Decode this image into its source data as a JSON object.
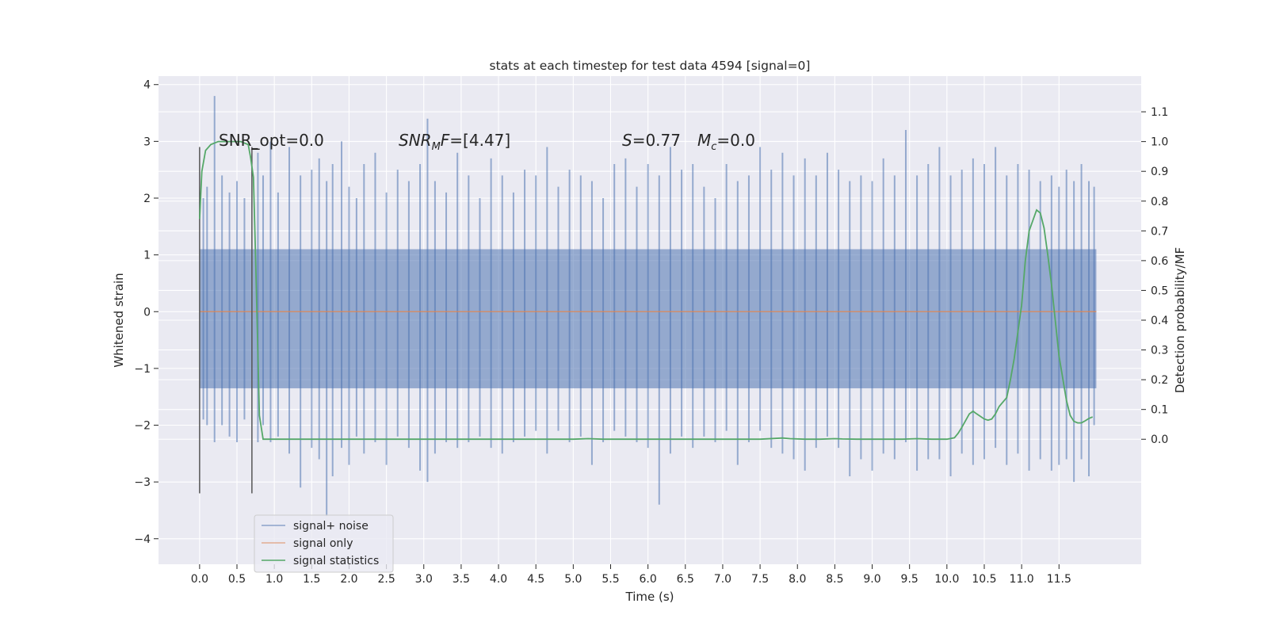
{
  "chart_data": {
    "type": "line",
    "title": "stats at each timestep for test data 4594 [signal=0]",
    "xlabel": "Time (s)",
    "ylabel": "Whitened strain",
    "ylabel_right": "Detection probability/MF",
    "xlim": [
      -0.55,
      12.6
    ],
    "ylim": [
      -4.45,
      4.15
    ],
    "ylim_right": [
      -0.42,
      1.22
    ],
    "grid": true,
    "x_ticks": [
      "0.0",
      "0.5",
      "1.0",
      "1.5",
      "2.0",
      "2.5",
      "3.0",
      "3.5",
      "4.0",
      "4.5",
      "5.0",
      "5.5",
      "6.0",
      "6.5",
      "7.0",
      "7.5",
      "8.0",
      "8.5",
      "9.0",
      "9.5",
      "10.0",
      "10.5",
      "11.0",
      "11.5"
    ],
    "y_ticks": [
      "4",
      "3",
      "2",
      "1",
      "0",
      "−1",
      "−2",
      "−3",
      "−4"
    ],
    "y_ticks_right": [
      "1.1",
      "1.0",
      "0.9",
      "0.8",
      "0.7",
      "0.6",
      "0.5",
      "0.4",
      "0.3",
      "0.2",
      "0.1",
      "0.0"
    ],
    "legend_position": "lower-left",
    "series": [
      {
        "name": "signal+ noise",
        "color": "#4c72b0",
        "axis": "left",
        "band": {
          "x_start": 0.0,
          "x_end": 12.0,
          "core_low": -1.35,
          "core_high": 1.1
        },
        "spikes": [
          [
            0.05,
            2.0,
            -1.9
          ],
          [
            0.1,
            2.2,
            -2.0
          ],
          [
            0.2,
            3.8,
            -2.3
          ],
          [
            0.3,
            2.4,
            -2.0
          ],
          [
            0.4,
            2.1,
            -2.2
          ],
          [
            0.5,
            2.3,
            -2.3
          ],
          [
            0.6,
            2.0,
            -1.9
          ],
          [
            0.78,
            2.8,
            -2.3
          ],
          [
            0.85,
            2.4,
            -2.0
          ],
          [
            0.95,
            3.0,
            -2.3
          ],
          [
            1.05,
            2.1,
            -2.2
          ],
          [
            1.2,
            2.9,
            -2.5
          ],
          [
            1.35,
            2.4,
            -3.1
          ],
          [
            1.5,
            2.5,
            -2.4
          ],
          [
            1.6,
            2.7,
            -2.6
          ],
          [
            1.7,
            2.3,
            -3.6
          ],
          [
            1.78,
            2.6,
            -2.9
          ],
          [
            1.9,
            3.0,
            -2.4
          ],
          [
            2.0,
            2.2,
            -2.7
          ],
          [
            2.1,
            2.0,
            -2.2
          ],
          [
            2.2,
            2.6,
            -2.5
          ],
          [
            2.35,
            2.8,
            -2.3
          ],
          [
            2.5,
            2.1,
            -2.7
          ],
          [
            2.65,
            2.5,
            -2.2
          ],
          [
            2.8,
            2.3,
            -2.4
          ],
          [
            2.95,
            2.6,
            -2.8
          ],
          [
            3.05,
            3.4,
            -3.0
          ],
          [
            3.15,
            2.3,
            -2.5
          ],
          [
            3.3,
            2.1,
            -2.3
          ],
          [
            3.45,
            2.8,
            -2.4
          ],
          [
            3.6,
            2.4,
            -2.3
          ],
          [
            3.75,
            2.0,
            -2.2
          ],
          [
            3.9,
            2.7,
            -2.4
          ],
          [
            4.05,
            2.4,
            -2.5
          ],
          [
            4.2,
            2.1,
            -2.3
          ],
          [
            4.35,
            2.5,
            -2.2
          ],
          [
            4.5,
            2.4,
            -2.1
          ],
          [
            4.65,
            2.9,
            -2.5
          ],
          [
            4.8,
            2.2,
            -2.1
          ],
          [
            4.95,
            2.5,
            -2.3
          ],
          [
            5.1,
            2.4,
            -2.2
          ],
          [
            5.25,
            2.3,
            -2.7
          ],
          [
            5.4,
            2.0,
            -2.3
          ],
          [
            5.55,
            2.6,
            -2.1
          ],
          [
            5.7,
            2.7,
            -2.2
          ],
          [
            5.85,
            2.2,
            -2.3
          ],
          [
            6.0,
            2.6,
            -2.4
          ],
          [
            6.15,
            2.4,
            -3.4
          ],
          [
            6.3,
            2.9,
            -2.5
          ],
          [
            6.45,
            2.5,
            -2.2
          ],
          [
            6.6,
            2.6,
            -2.4
          ],
          [
            6.75,
            2.2,
            -2.2
          ],
          [
            6.9,
            2.0,
            -2.3
          ],
          [
            7.05,
            2.6,
            -2.1
          ],
          [
            7.2,
            2.3,
            -2.7
          ],
          [
            7.35,
            2.4,
            -2.3
          ],
          [
            7.5,
            2.9,
            -2.1
          ],
          [
            7.65,
            2.5,
            -2.4
          ],
          [
            7.8,
            2.8,
            -2.5
          ],
          [
            7.95,
            2.4,
            -2.6
          ],
          [
            8.1,
            2.7,
            -2.8
          ],
          [
            8.25,
            2.4,
            -2.4
          ],
          [
            8.4,
            2.8,
            -2.2
          ],
          [
            8.55,
            2.5,
            -2.4
          ],
          [
            8.7,
            2.3,
            -2.9
          ],
          [
            8.85,
            2.4,
            -2.6
          ],
          [
            9.0,
            2.3,
            -2.8
          ],
          [
            9.15,
            2.7,
            -2.5
          ],
          [
            9.3,
            2.4,
            -2.6
          ],
          [
            9.45,
            3.2,
            -2.3
          ],
          [
            9.6,
            2.4,
            -2.8
          ],
          [
            9.75,
            2.6,
            -2.6
          ],
          [
            9.9,
            2.9,
            -2.6
          ],
          [
            10.05,
            2.4,
            -2.9
          ],
          [
            10.2,
            2.5,
            -2.5
          ],
          [
            10.35,
            2.7,
            -2.7
          ],
          [
            10.5,
            2.6,
            -2.6
          ],
          [
            10.65,
            2.9,
            -2.4
          ],
          [
            10.8,
            2.4,
            -2.7
          ],
          [
            10.95,
            2.6,
            -2.5
          ],
          [
            11.1,
            2.5,
            -2.8
          ],
          [
            11.25,
            2.3,
            -2.6
          ],
          [
            11.4,
            2.4,
            -2.8
          ],
          [
            11.5,
            2.2,
            -2.7
          ],
          [
            11.6,
            2.5,
            -2.6
          ],
          [
            11.7,
            2.3,
            -3.0
          ],
          [
            11.8,
            2.6,
            -2.6
          ],
          [
            11.9,
            2.3,
            -2.9
          ],
          [
            11.97,
            2.2,
            -2.0
          ]
        ]
      },
      {
        "name": "signal only",
        "color": "#dd8452",
        "axis": "left",
        "x": [
          0.0,
          12.0
        ],
        "y": [
          0.0,
          0.0
        ]
      },
      {
        "name": "signal statistics",
        "color": "#55a868",
        "axis": "right",
        "x": [
          0.0,
          0.03,
          0.08,
          0.15,
          0.25,
          0.4,
          0.55,
          0.6,
          0.65,
          0.68,
          0.72,
          0.75,
          0.8,
          0.85,
          0.9,
          1.0,
          2.0,
          4.0,
          5.0,
          5.2,
          5.4,
          6.0,
          7.0,
          7.5,
          7.8,
          7.9,
          8.1,
          8.3,
          8.5,
          8.6,
          8.8,
          9.0,
          9.4,
          9.6,
          9.8,
          10.0,
          10.1,
          10.15,
          10.2,
          10.3,
          10.35,
          10.4,
          10.5,
          10.55,
          10.6,
          10.65,
          10.7,
          10.8,
          10.85,
          10.9,
          11.0,
          11.05,
          11.1,
          11.2,
          11.25,
          11.3,
          11.35,
          11.4,
          11.5,
          11.6,
          11.65,
          11.7,
          11.75,
          11.8,
          11.85,
          11.9,
          11.95
        ],
        "y": [
          0.74,
          0.9,
          0.97,
          0.99,
          1.0,
          1.0,
          1.0,
          0.995,
          0.99,
          0.95,
          0.88,
          0.6,
          0.08,
          0.0,
          0.0,
          0.0,
          0.0,
          0.0,
          0.0,
          0.002,
          0.0,
          0.0,
          0.0,
          0.0,
          0.004,
          0.002,
          0.0,
          0.0,
          0.002,
          0.001,
          0.0,
          0.0,
          0.0,
          0.002,
          0.0,
          0.0,
          0.005,
          0.02,
          0.04,
          0.085,
          0.094,
          0.085,
          0.068,
          0.064,
          0.068,
          0.085,
          0.11,
          0.14,
          0.2,
          0.27,
          0.45,
          0.6,
          0.7,
          0.77,
          0.76,
          0.71,
          0.62,
          0.52,
          0.28,
          0.13,
          0.08,
          0.06,
          0.055,
          0.055,
          0.062,
          0.07,
          0.075
        ]
      }
    ],
    "marker_lines": {
      "color": "#555555",
      "axis": "left",
      "items": [
        {
          "x": 0.0,
          "y_low": -3.2,
          "y_high": 2.9
        },
        {
          "x": 0.7,
          "y_low": -3.2,
          "y_high": 2.9
        }
      ],
      "tick_mark": {
        "x_start": 0.7,
        "x_end": 0.78,
        "y": 2.87
      }
    },
    "annotations": {
      "snr_opt": "SNR_opt=0.0",
      "snr_mf_name": "SNR",
      "snr_mf_sub": "M",
      "snr_mf_rest": "F=[4.47]",
      "s_name": "S",
      "s_rest": "=0.77",
      "mc_name": "M",
      "mc_sub": "c",
      "mc_rest": "=0.0"
    }
  }
}
